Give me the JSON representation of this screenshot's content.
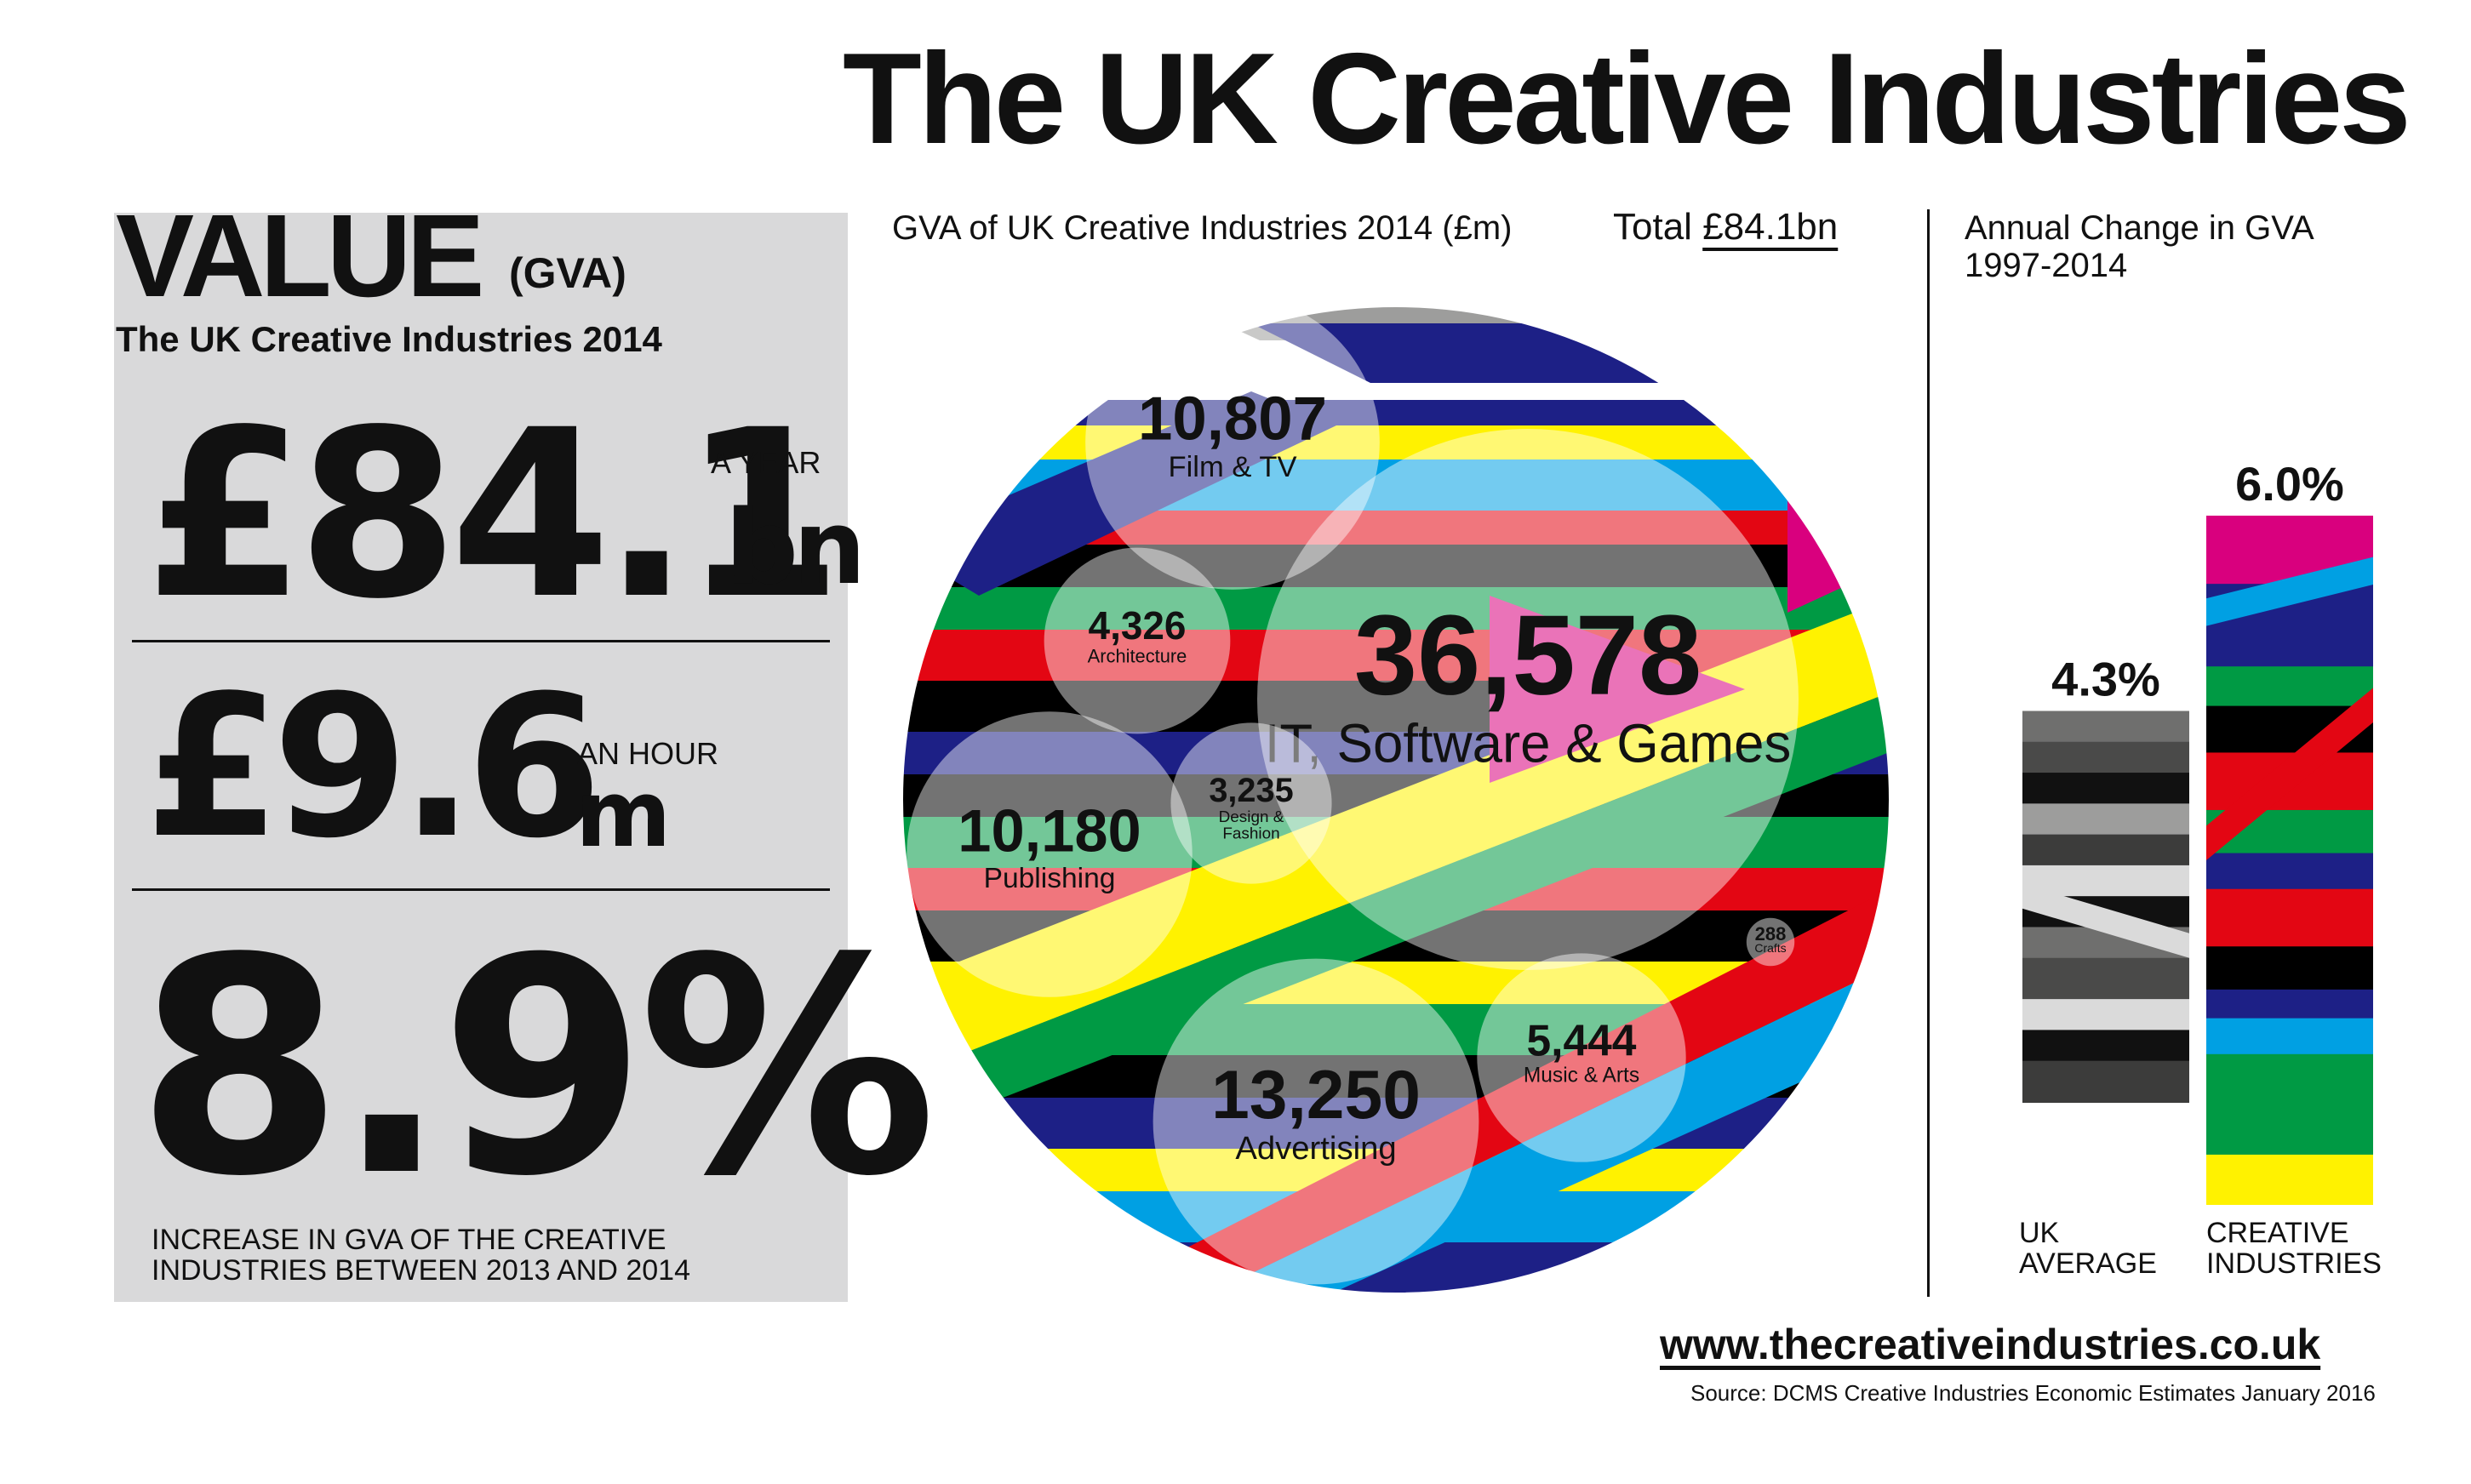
{
  "title": "The UK Creative Industries",
  "value_panel": {
    "heading": "VALUE",
    "heading_suffix": "(GVA)",
    "subtitle": "The UK Creative Industries 2014",
    "per_year": {
      "value": "£84.1",
      "unit": "bn",
      "label": "A YEAR"
    },
    "per_hour": {
      "value": "£9.6",
      "unit": "m",
      "label": "AN HOUR"
    },
    "growth": {
      "value": "8.9%",
      "caption": "INCREASE IN GVA OF THE CREATIVE INDUSTRIES BETWEEN 2013 AND 2014"
    }
  },
  "bubble_chart": {
    "title": "GVA of UK Creative Industries 2014 (£m)",
    "total_prefix": "Total",
    "total_value": "£84.1bn"
  },
  "bar_chart": {
    "title_line1": "Annual Change in GVA",
    "title_line2": "1997-2014",
    "uk_label_line1": "UK",
    "uk_label_line2": "AVERAGE",
    "ci_label_line1": "CREATIVE",
    "ci_label_line2": "INDUSTRIES"
  },
  "footer": {
    "website": "www.thecreativeindustries.co.uk",
    "source": "Source: DCMS Creative Industries Economic Estimates January 2016"
  },
  "colors": {
    "stripes": [
      "#e30613",
      "#000000",
      "#009a44",
      "#fff200",
      "#1d2086",
      "#00a0e3",
      "#d9007e",
      "#ffffff",
      "#9d9d9c"
    ],
    "bubble_fill": "#ffffff",
    "bubble_opacity": 0.45
  },
  "chart_data": [
    {
      "type": "bubble",
      "title": "GVA of UK Creative Industries 2014 (£m)",
      "unit": "£m",
      "total": "£84.1bn",
      "items": [
        {
          "label": "IT, Software & Games",
          "value": 36578,
          "display": "36,578"
        },
        {
          "label": "Advertising",
          "value": 13250,
          "display": "13,250"
        },
        {
          "label": "Film & TV",
          "value": 10807,
          "display": "10,807"
        },
        {
          "label": "Publishing",
          "value": 10180,
          "display": "10,180"
        },
        {
          "label": "Music & Arts",
          "value": 5444,
          "display": "5,444"
        },
        {
          "label": "Architecture",
          "value": 4326,
          "display": "4,326"
        },
        {
          "label": "Design & Fashion",
          "value": 3235,
          "display": "3,235"
        },
        {
          "label": "Crafts",
          "value": 288,
          "display": "288"
        }
      ]
    },
    {
      "type": "bar",
      "title": "Annual Change in GVA 1997-2014",
      "categories": [
        "UK AVERAGE",
        "CREATIVE INDUSTRIES"
      ],
      "values": [
        4.3,
        6.0
      ],
      "value_labels": [
        "4.3%",
        "6.0%"
      ],
      "ylim": [
        0,
        6.0
      ]
    }
  ]
}
